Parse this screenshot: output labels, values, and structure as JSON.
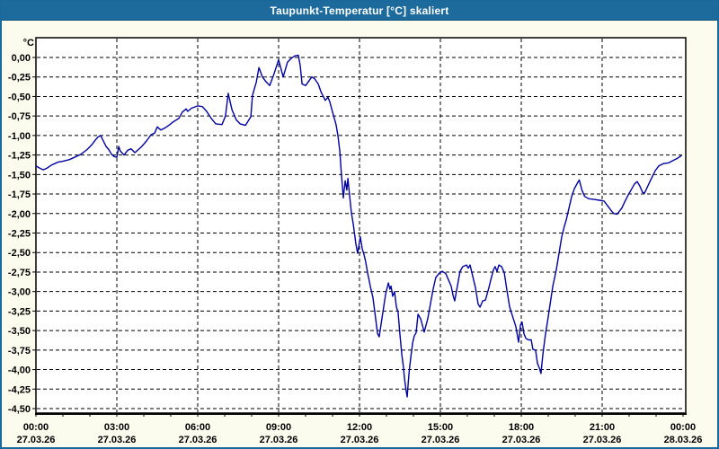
{
  "window": {
    "title": "Taupunkt-Temperatur [°C] skaliert"
  },
  "colors": {
    "titlebar_bg": "#1d6b9d",
    "titlebar_text": "#ffffff",
    "frame": "#1a699c",
    "canvas_bg": "#fbfbee",
    "plot_bg": "#ffffff",
    "grid": "#000000",
    "line": "#0000a0",
    "text": "#000000"
  },
  "chart_data": {
    "type": "line",
    "title": "Taupunkt-Temperatur [°C] skaliert",
    "y_axis_unit": "°C",
    "grid": "dashed",
    "legend": "none",
    "ylim": [
      0.25,
      -4.56
    ],
    "xlim_hours": [
      0,
      24.1
    ],
    "y_ticks": [
      {
        "value": 0.0,
        "label": "0,00"
      },
      {
        "value": -0.25,
        "label": "-0,25"
      },
      {
        "value": -0.5,
        "label": "-0,50"
      },
      {
        "value": -0.75,
        "label": "-0,75"
      },
      {
        "value": -1.0,
        "label": "-1,00"
      },
      {
        "value": -1.25,
        "label": "-1,25"
      },
      {
        "value": -1.5,
        "label": "-1,50"
      },
      {
        "value": -1.75,
        "label": "-1,75"
      },
      {
        "value": -2.0,
        "label": "-2,00"
      },
      {
        "value": -2.25,
        "label": "-2,25"
      },
      {
        "value": -2.5,
        "label": "-2,50"
      },
      {
        "value": -2.75,
        "label": "-2,75"
      },
      {
        "value": -3.0,
        "label": "-3,00"
      },
      {
        "value": -3.25,
        "label": "-3,25"
      },
      {
        "value": -3.5,
        "label": "-3,50"
      },
      {
        "value": -3.75,
        "label": "-3,75"
      },
      {
        "value": -4.0,
        "label": "-4,00"
      },
      {
        "value": -4.25,
        "label": "-4,25"
      },
      {
        "value": -4.5,
        "label": "-4,50"
      }
    ],
    "x_ticks": [
      {
        "hour": 0,
        "time": "00:00",
        "date": "27.03.26"
      },
      {
        "hour": 3,
        "time": "03:00",
        "date": "27.03.26"
      },
      {
        "hour": 6,
        "time": "06:00",
        "date": "27.03.26"
      },
      {
        "hour": 9,
        "time": "09:00",
        "date": "27.03.26"
      },
      {
        "hour": 12,
        "time": "12:00",
        "date": "27.03.26"
      },
      {
        "hour": 15,
        "time": "15:00",
        "date": "27.03.26"
      },
      {
        "hour": 18,
        "time": "18:00",
        "date": "27.03.26"
      },
      {
        "hour": 21,
        "time": "21:00",
        "date": "27.03.26"
      },
      {
        "hour": 24,
        "time": "00:00",
        "date": "28.03.26"
      }
    ],
    "minor_x_tick_every_hours": 1,
    "series": [
      {
        "name": "Taupunkt-Temperatur",
        "color": "#0000a0",
        "points": [
          [
            0.0,
            -1.39
          ],
          [
            0.15,
            -1.42
          ],
          [
            0.27,
            -1.44
          ],
          [
            0.4,
            -1.42
          ],
          [
            0.57,
            -1.38
          ],
          [
            0.7,
            -1.36
          ],
          [
            0.83,
            -1.34
          ],
          [
            1.0,
            -1.33
          ],
          [
            1.23,
            -1.31
          ],
          [
            1.43,
            -1.28
          ],
          [
            1.67,
            -1.24
          ],
          [
            1.9,
            -1.18
          ],
          [
            2.07,
            -1.12
          ],
          [
            2.2,
            -1.06
          ],
          [
            2.3,
            -1.02
          ],
          [
            2.4,
            -1.0
          ],
          [
            2.5,
            -1.07
          ],
          [
            2.6,
            -1.14
          ],
          [
            2.7,
            -1.18
          ],
          [
            2.8,
            -1.24
          ],
          [
            2.9,
            -1.27
          ],
          [
            3.0,
            -1.28
          ],
          [
            3.07,
            -1.14
          ],
          [
            3.13,
            -1.2
          ],
          [
            3.27,
            -1.25
          ],
          [
            3.4,
            -1.19
          ],
          [
            3.53,
            -1.17
          ],
          [
            3.67,
            -1.22
          ],
          [
            3.9,
            -1.15
          ],
          [
            4.1,
            -1.07
          ],
          [
            4.27,
            -0.99
          ],
          [
            4.4,
            -0.97
          ],
          [
            4.5,
            -0.89
          ],
          [
            4.63,
            -0.93
          ],
          [
            4.8,
            -0.9
          ],
          [
            4.97,
            -0.86
          ],
          [
            5.07,
            -0.83
          ],
          [
            5.3,
            -0.78
          ],
          [
            5.43,
            -0.7
          ],
          [
            5.57,
            -0.66
          ],
          [
            5.63,
            -0.69
          ],
          [
            5.77,
            -0.65
          ],
          [
            6.0,
            -0.62
          ],
          [
            6.17,
            -0.63
          ],
          [
            6.33,
            -0.69
          ],
          [
            6.5,
            -0.78
          ],
          [
            6.67,
            -0.85
          ],
          [
            6.9,
            -0.86
          ],
          [
            7.03,
            -0.75
          ],
          [
            7.13,
            -0.46
          ],
          [
            7.27,
            -0.67
          ],
          [
            7.43,
            -0.8
          ],
          [
            7.57,
            -0.85
          ],
          [
            7.77,
            -0.87
          ],
          [
            7.97,
            -0.76
          ],
          [
            8.03,
            -0.49
          ],
          [
            8.1,
            -0.4
          ],
          [
            8.17,
            -0.32
          ],
          [
            8.27,
            -0.13
          ],
          [
            8.4,
            -0.25
          ],
          [
            8.53,
            -0.31
          ],
          [
            8.67,
            -0.36
          ],
          [
            8.83,
            -0.21
          ],
          [
            9.0,
            -0.03
          ],
          [
            9.17,
            -0.25
          ],
          [
            9.33,
            -0.06
          ],
          [
            9.47,
            -0.01
          ],
          [
            9.6,
            0.02
          ],
          [
            9.73,
            0.03
          ],
          [
            9.8,
            -0.1
          ],
          [
            9.87,
            -0.34
          ],
          [
            10.0,
            -0.36
          ],
          [
            10.23,
            -0.25
          ],
          [
            10.33,
            -0.27
          ],
          [
            10.47,
            -0.34
          ],
          [
            10.57,
            -0.44
          ],
          [
            10.73,
            -0.55
          ],
          [
            10.83,
            -0.51
          ],
          [
            10.9,
            -0.57
          ],
          [
            11.0,
            -0.7
          ],
          [
            11.13,
            -0.86
          ],
          [
            11.2,
            -1.0
          ],
          [
            11.27,
            -1.2
          ],
          [
            11.33,
            -1.5
          ],
          [
            11.4,
            -1.8
          ],
          [
            11.47,
            -1.58
          ],
          [
            11.53,
            -1.7
          ],
          [
            11.57,
            -1.55
          ],
          [
            11.63,
            -1.76
          ],
          [
            11.7,
            -1.99
          ],
          [
            11.77,
            -2.14
          ],
          [
            11.87,
            -2.4
          ],
          [
            11.93,
            -2.51
          ],
          [
            12.03,
            -2.3
          ],
          [
            12.1,
            -2.45
          ],
          [
            12.17,
            -2.53
          ],
          [
            12.23,
            -2.62
          ],
          [
            12.3,
            -2.76
          ],
          [
            12.4,
            -2.93
          ],
          [
            12.5,
            -3.08
          ],
          [
            12.6,
            -3.35
          ],
          [
            12.67,
            -3.54
          ],
          [
            12.73,
            -3.58
          ],
          [
            12.83,
            -3.35
          ],
          [
            12.97,
            -3.03
          ],
          [
            13.07,
            -2.89
          ],
          [
            13.13,
            -2.97
          ],
          [
            13.17,
            -2.93
          ],
          [
            13.23,
            -3.06
          ],
          [
            13.3,
            -3.0
          ],
          [
            13.37,
            -3.2
          ],
          [
            13.43,
            -3.26
          ],
          [
            13.5,
            -3.55
          ],
          [
            13.57,
            -3.81
          ],
          [
            13.63,
            -3.97
          ],
          [
            13.67,
            -4.12
          ],
          [
            13.73,
            -4.27
          ],
          [
            13.77,
            -4.35
          ],
          [
            13.8,
            -4.2
          ],
          [
            13.85,
            -4.0
          ],
          [
            13.9,
            -3.85
          ],
          [
            13.97,
            -3.66
          ],
          [
            14.03,
            -3.57
          ],
          [
            14.1,
            -3.53
          ],
          [
            14.17,
            -3.29
          ],
          [
            14.27,
            -3.35
          ],
          [
            14.4,
            -3.52
          ],
          [
            14.53,
            -3.35
          ],
          [
            14.63,
            -3.16
          ],
          [
            14.73,
            -2.97
          ],
          [
            14.83,
            -2.82
          ],
          [
            14.97,
            -2.76
          ],
          [
            15.07,
            -2.74
          ],
          [
            15.2,
            -2.77
          ],
          [
            15.4,
            -2.93
          ],
          [
            15.47,
            -3.05
          ],
          [
            15.53,
            -3.12
          ],
          [
            15.63,
            -2.93
          ],
          [
            15.73,
            -2.74
          ],
          [
            15.83,
            -2.68
          ],
          [
            15.97,
            -2.66
          ],
          [
            16.03,
            -2.7
          ],
          [
            16.1,
            -2.66
          ],
          [
            16.17,
            -2.76
          ],
          [
            16.3,
            -2.95
          ],
          [
            16.4,
            -3.16
          ],
          [
            16.47,
            -3.2
          ],
          [
            16.57,
            -3.12
          ],
          [
            16.67,
            -3.11
          ],
          [
            16.8,
            -2.95
          ],
          [
            16.87,
            -2.85
          ],
          [
            16.97,
            -2.72
          ],
          [
            17.03,
            -2.68
          ],
          [
            17.1,
            -2.74
          ],
          [
            17.17,
            -2.66
          ],
          [
            17.27,
            -2.68
          ],
          [
            17.37,
            -2.76
          ],
          [
            17.47,
            -2.99
          ],
          [
            17.57,
            -3.2
          ],
          [
            17.67,
            -3.31
          ],
          [
            17.8,
            -3.45
          ],
          [
            17.9,
            -3.65
          ],
          [
            17.97,
            -3.43
          ],
          [
            18.03,
            -3.39
          ],
          [
            18.1,
            -3.54
          ],
          [
            18.17,
            -3.6
          ],
          [
            18.27,
            -3.62
          ],
          [
            18.37,
            -3.62
          ],
          [
            18.43,
            -3.74
          ],
          [
            18.53,
            -3.75
          ],
          [
            18.6,
            -3.92
          ],
          [
            18.67,
            -3.98
          ],
          [
            18.73,
            -4.05
          ],
          [
            18.8,
            -3.81
          ],
          [
            18.9,
            -3.54
          ],
          [
            18.97,
            -3.39
          ],
          [
            19.07,
            -3.16
          ],
          [
            19.17,
            -2.93
          ],
          [
            19.3,
            -2.72
          ],
          [
            19.4,
            -2.51
          ],
          [
            19.5,
            -2.3
          ],
          [
            19.6,
            -2.16
          ],
          [
            19.67,
            -2.08
          ],
          [
            19.77,
            -1.93
          ],
          [
            19.87,
            -1.78
          ],
          [
            19.97,
            -1.68
          ],
          [
            20.1,
            -1.6
          ],
          [
            20.15,
            -1.57
          ],
          [
            20.25,
            -1.7
          ],
          [
            20.35,
            -1.78
          ],
          [
            20.5,
            -1.81
          ],
          [
            20.7,
            -1.82
          ],
          [
            20.9,
            -1.83
          ],
          [
            21.07,
            -1.84
          ],
          [
            21.2,
            -1.9
          ],
          [
            21.33,
            -1.96
          ],
          [
            21.43,
            -2.0
          ],
          [
            21.55,
            -2.01
          ],
          [
            21.73,
            -1.93
          ],
          [
            21.85,
            -1.84
          ],
          [
            21.97,
            -1.76
          ],
          [
            22.07,
            -1.7
          ],
          [
            22.2,
            -1.62
          ],
          [
            22.3,
            -1.59
          ],
          [
            22.4,
            -1.65
          ],
          [
            22.5,
            -1.73
          ],
          [
            22.57,
            -1.74
          ],
          [
            22.73,
            -1.62
          ],
          [
            22.87,
            -1.52
          ],
          [
            22.97,
            -1.45
          ],
          [
            23.1,
            -1.39
          ],
          [
            23.27,
            -1.36
          ],
          [
            23.47,
            -1.35
          ],
          [
            23.63,
            -1.32
          ],
          [
            23.8,
            -1.29
          ],
          [
            23.93,
            -1.26
          ]
        ]
      }
    ]
  }
}
